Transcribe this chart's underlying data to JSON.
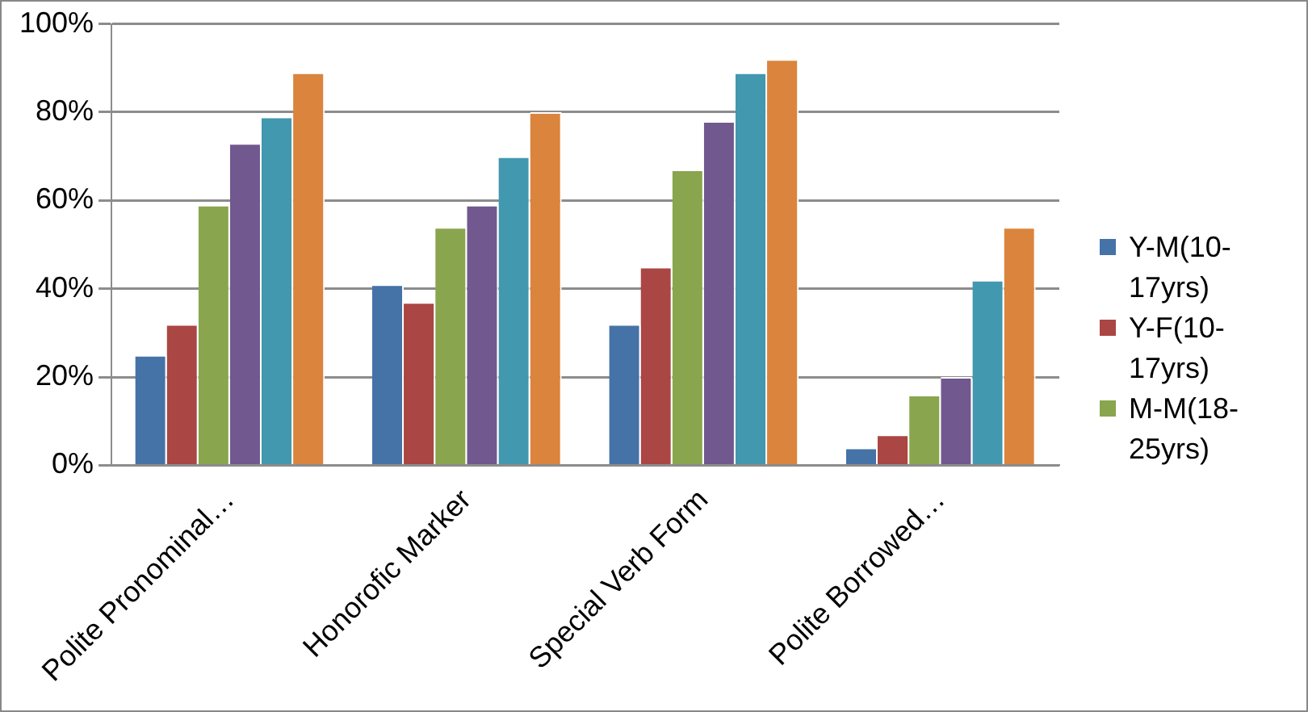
{
  "chart_data": {
    "type": "bar",
    "categories": [
      "Polite Pronominal…",
      "Honorofic Marker",
      "Special Verb Form",
      "Polite Borrowed…"
    ],
    "series": [
      {
        "name": "Y-M(10-17yrs)",
        "color": "#4572a7",
        "values": [
          25,
          41,
          32,
          4
        ]
      },
      {
        "name": "Y-F(10-17yrs)",
        "color": "#aa4643",
        "values": [
          32,
          37,
          45,
          7
        ]
      },
      {
        "name": "M-M(18-25yrs)",
        "color": "#89a54e",
        "values": [
          59,
          54,
          67,
          16
        ]
      },
      {
        "color": "#71588f",
        "values": [
          73,
          59,
          78,
          20
        ]
      },
      {
        "color": "#4198af",
        "values": [
          79,
          70,
          89,
          42
        ]
      },
      {
        "color": "#db843d",
        "values": [
          89,
          80,
          92,
          54
        ]
      }
    ],
    "ylim": [
      0,
      100
    ],
    "yticks": [
      {
        "value": 0,
        "label": "0%"
      },
      {
        "value": 20,
        "label": "20%"
      },
      {
        "value": 40,
        "label": "40%"
      },
      {
        "value": 60,
        "label": "60%"
      },
      {
        "value": 80,
        "label": "80%"
      },
      {
        "value": 100,
        "label": "100%"
      }
    ],
    "grid": "y",
    "legend": "right"
  }
}
